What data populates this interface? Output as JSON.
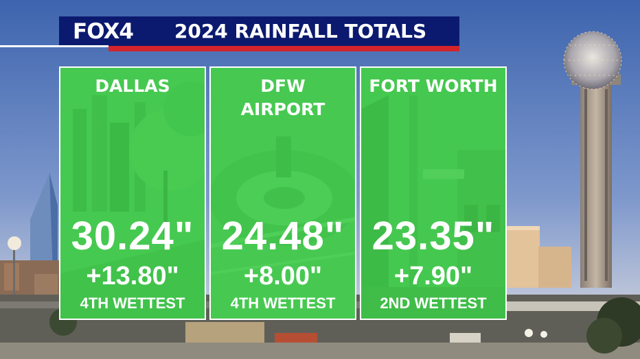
{
  "header": {
    "logo": "FOX4",
    "title": "2024 RAINFALL TOTALS"
  },
  "panels": [
    {
      "name": "DALLAS",
      "total": "30.24\"",
      "delta": "+13.80\"",
      "rank": "4TH WETTEST"
    },
    {
      "name": "DFW\nAIRPORT",
      "total": "24.48\"",
      "delta": "+8.00\"",
      "rank": "4TH WETTEST"
    },
    {
      "name": "FORT WORTH",
      "total": "23.35\"",
      "delta": "+7.90\"",
      "rank": "2ND WETTEST"
    }
  ],
  "colors": {
    "panel_green": "#3fc64c",
    "header_navy": "#0b1a6e",
    "header_red": "#d3242c",
    "sky_top": "#3d64ae",
    "sky_bottom": "#b9c6e2"
  }
}
